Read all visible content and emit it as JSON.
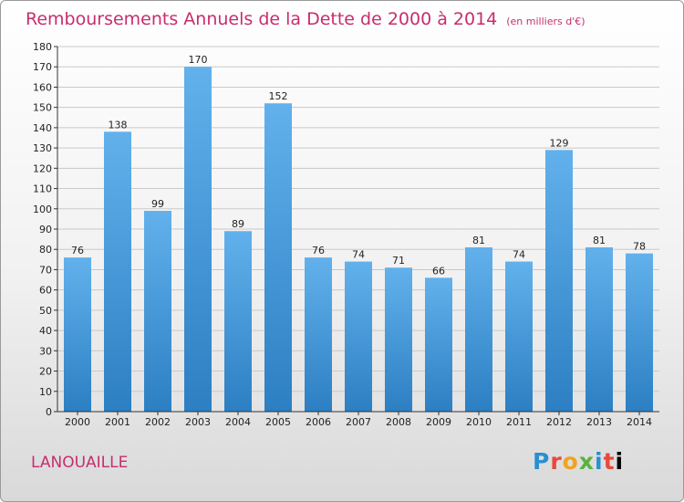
{
  "header": {
    "title": "Remboursements Annuels de la Dette de 2000 à 2014",
    "unit": "(en milliers d'€)"
  },
  "commune": "LANOUAILLE",
  "logo": [
    "P",
    "r",
    "o",
    "x",
    "i",
    "t",
    "i"
  ],
  "colors": {
    "bar_top": "#62b1ec",
    "bar_bottom": "#2c7fc2",
    "title": "#c72d6e"
  },
  "chart_data": {
    "type": "bar",
    "title": "Remboursements Annuels de la Dette de 2000 à 2014",
    "ylabel": "(en milliers d'€)",
    "xlabel": "",
    "categories": [
      "2000",
      "2001",
      "2002",
      "2003",
      "2004",
      "2005",
      "2006",
      "2007",
      "2008",
      "2009",
      "2010",
      "2011",
      "2012",
      "2013",
      "2014"
    ],
    "values": [
      76,
      138,
      99,
      170,
      89,
      152,
      76,
      74,
      71,
      66,
      81,
      74,
      129,
      81,
      78
    ],
    "ylim": [
      0,
      180
    ],
    "yticks": [
      0,
      10,
      20,
      30,
      40,
      50,
      60,
      70,
      80,
      90,
      100,
      110,
      120,
      130,
      140,
      150,
      160,
      170,
      180
    ],
    "grid": true
  }
}
